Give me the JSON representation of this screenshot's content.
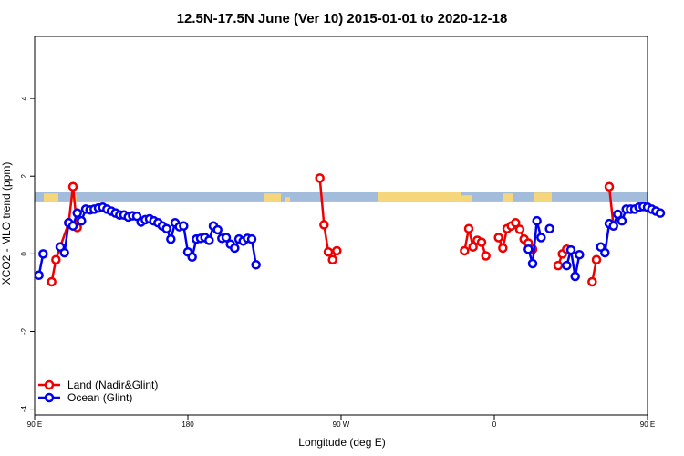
{
  "chart_data": {
    "type": "line",
    "title": "12.5N-17.5N June (Ver 10)   2015-01-01 to 2020-12-18",
    "xlabel": "Longitude (deg E)",
    "ylabel": "XCO2 - MLO trend (ppm)",
    "xlim": [
      90,
      450
    ],
    "ylim": [
      -4.15,
      5.6
    ],
    "x_ticks": [
      {
        "value": 90,
        "label": "90 E"
      },
      {
        "value": 180,
        "label": "180"
      },
      {
        "value": 270,
        "label": "90 W"
      },
      {
        "value": 360,
        "label": "0"
      },
      {
        "value": 450,
        "label": "90 E"
      },
      {
        "value": 540,
        "label": "180"
      }
    ],
    "y_ticks": [
      {
        "value": -4,
        "label": "-4"
      },
      {
        "value": -2,
        "label": "-2"
      },
      {
        "value": 0,
        "label": "0"
      },
      {
        "value": 2,
        "label": "2"
      },
      {
        "value": 4,
        "label": "4"
      }
    ],
    "land_mask_band": {
      "y_range": [
        1.35,
        1.6
      ],
      "ocean_color": "#a4bcdc",
      "land_color": "#f5d67a"
    },
    "legend_position": "bottom-left",
    "series": [
      {
        "name": "Land (Nadir&Glint)",
        "color": "#ee0000",
        "segments": [
          [
            [
              100,
              -0.72
            ],
            [
              102.5,
              -0.15
            ],
            [
              105,
              0.18
            ],
            [
              110,
              0.8
            ],
            [
              112.5,
              1.73
            ],
            [
              115,
              0.68
            ]
          ],
          [
            [
              257.5,
              1.95
            ],
            [
              260,
              0.75
            ],
            [
              262.5,
              0.05
            ],
            [
              265,
              -0.15
            ],
            [
              267.5,
              0.08
            ]
          ],
          [
            [
              342.5,
              0.08
            ],
            [
              345,
              0.65
            ],
            [
              347.5,
              0.18
            ],
            [
              350,
              0.35
            ],
            [
              352.5,
              0.3
            ],
            [
              355,
              -0.05
            ]
          ],
          [
            [
              362.5,
              0.42
            ],
            [
              365,
              0.15
            ],
            [
              367.5,
              0.65
            ],
            [
              370,
              0.72
            ],
            [
              372.5,
              0.8
            ],
            [
              375,
              0.63
            ],
            [
              377.5,
              0.38
            ],
            [
              380,
              0.28
            ],
            [
              382.5,
              0.12
            ]
          ],
          [
            [
              397.5,
              -0.3
            ],
            [
              400,
              0
            ],
            [
              402.5,
              0.12
            ]
          ],
          [
            [
              417.5,
              -0.72
            ],
            [
              420,
              -0.15
            ]
          ],
          [
            [
              427.5,
              1.73
            ],
            [
              430,
              0.72
            ]
          ]
        ]
      },
      {
        "name": "Ocean (Glint)",
        "color": "#0000ee",
        "segments": [
          [
            [
              92.5,
              -0.55
            ],
            [
              95,
              0
            ],
            [
              97.5,
              null
            ],
            [
              100,
              null
            ],
            [
              102.5,
              null
            ],
            [
              105,
              0.18
            ],
            [
              107.5,
              0.03
            ],
            [
              110,
              0.8
            ],
            [
              112.5,
              0.72
            ],
            [
              115,
              1.05
            ],
            [
              117.5,
              0.85
            ],
            [
              120,
              1.15
            ],
            [
              122.5,
              1.13
            ],
            [
              125,
              1.15
            ],
            [
              127.5,
              1.18
            ],
            [
              130,
              1.2
            ],
            [
              132.5,
              1.15
            ],
            [
              135,
              1.1
            ],
            [
              137.5,
              1.05
            ],
            [
              140,
              1.0
            ],
            [
              142.5,
              1.0
            ],
            [
              145,
              0.95
            ],
            [
              147.5,
              0.98
            ],
            [
              150,
              0.97
            ],
            [
              152.5,
              0.82
            ],
            [
              155,
              0.88
            ],
            [
              157.5,
              0.9
            ],
            [
              160,
              0.85
            ],
            [
              162.5,
              0.8
            ],
            [
              165,
              0.72
            ],
            [
              167.5,
              0.65
            ],
            [
              170,
              0.38
            ],
            [
              172.5,
              0.8
            ],
            [
              175,
              0.7
            ],
            [
              177.5,
              0.72
            ],
            [
              180,
              0.05
            ],
            [
              182.5,
              -0.08
            ],
            [
              185,
              0.38
            ],
            [
              187.5,
              0.4
            ],
            [
              190,
              0.42
            ],
            [
              192.5,
              0.35
            ],
            [
              195,
              0.72
            ],
            [
              197.5,
              0.62
            ],
            [
              200,
              0.4
            ],
            [
              202.5,
              0.42
            ],
            [
              205,
              0.25
            ],
            [
              207.5,
              0.15
            ],
            [
              210,
              0.38
            ],
            [
              212.5,
              0.33
            ],
            [
              215,
              0.4
            ],
            [
              217.5,
              0.38
            ],
            [
              220,
              -0.28
            ]
          ],
          [
            [
              380,
              0.12
            ],
            [
              382.5,
              -0.25
            ],
            [
              385,
              0.85
            ],
            [
              387.5,
              0.42
            ]
          ],
          [
            [
              392.5,
              0.65
            ]
          ],
          [
            [
              402.5,
              -0.3
            ],
            [
              405,
              0.1
            ],
            [
              407.5,
              -0.58
            ],
            [
              410,
              -0.02
            ]
          ],
          [
            [
              422.5,
              0.18
            ],
            [
              425,
              0.03
            ],
            [
              427.5,
              0.78
            ],
            [
              430,
              0.72
            ],
            [
              432.5,
              1.02
            ],
            [
              435,
              0.85
            ],
            [
              437.5,
              1.15
            ],
            [
              440,
              1.15
            ],
            [
              442.5,
              1.15
            ],
            [
              445,
              1.2
            ],
            [
              447.5,
              1.22
            ],
            [
              450,
              1.2
            ],
            [
              452.5,
              1.15
            ],
            [
              455,
              1.1
            ],
            [
              457.5,
              1.05
            ]
          ]
        ]
      }
    ]
  }
}
